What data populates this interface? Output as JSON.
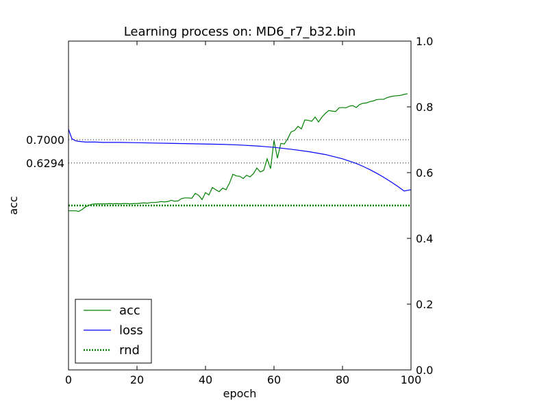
{
  "chart_data": {
    "type": "line",
    "title": "Learning process on: MD6_r7_b32.bin",
    "xlabel": "epoch",
    "ylabel": "acc",
    "xlim": [
      0,
      100
    ],
    "ylim": [
      0,
      1
    ],
    "x_ticks": [
      "0",
      "20",
      "40",
      "60",
      "80",
      "100"
    ],
    "y_ticks_right": [
      "0.0",
      "0.2",
      "0.4",
      "0.6",
      "0.8",
      "1.0"
    ],
    "reference_lines": [
      {
        "value": 0.7,
        "label": "0.7000",
        "style": "dotted",
        "color": "#000000"
      },
      {
        "value": 0.6294,
        "label": "0.6294",
        "style": "dotted",
        "color": "#000000"
      }
    ],
    "grid": false,
    "legend_position": "lower-left",
    "series": [
      {
        "name": "acc",
        "color": "#008000",
        "style": "solid",
        "x": [
          0,
          1,
          2,
          3,
          4,
          5,
          6,
          7,
          8,
          9,
          10,
          11,
          12,
          13,
          14,
          15,
          16,
          17,
          18,
          19,
          20,
          21,
          22,
          23,
          24,
          25,
          26,
          27,
          28,
          29,
          30,
          31,
          32,
          33,
          34,
          35,
          36,
          37,
          38,
          39,
          40,
          41,
          42,
          43,
          44,
          45,
          46,
          47,
          48,
          49,
          50,
          51,
          52,
          53,
          54,
          55,
          56,
          57,
          58,
          59,
          60,
          61,
          62,
          63,
          64,
          65,
          66,
          67,
          68,
          69,
          70,
          71,
          72,
          73,
          74,
          75,
          76,
          77,
          78,
          79,
          80,
          81,
          82,
          83,
          84,
          85,
          86,
          87,
          88,
          89,
          90,
          91,
          92,
          93,
          94,
          95,
          96,
          97,
          98,
          99
        ],
        "values": [
          0.484,
          0.484,
          0.484,
          0.482,
          0.488,
          0.496,
          0.501,
          0.504,
          0.505,
          0.505,
          0.505,
          0.505,
          0.506,
          0.505,
          0.506,
          0.505,
          0.506,
          0.506,
          0.505,
          0.506,
          0.506,
          0.507,
          0.508,
          0.507,
          0.509,
          0.509,
          0.51,
          0.512,
          0.511,
          0.512,
          0.516,
          0.513,
          0.514,
          0.521,
          0.523,
          0.523,
          0.522,
          0.537,
          0.531,
          0.518,
          0.539,
          0.532,
          0.555,
          0.548,
          0.542,
          0.553,
          0.548,
          0.568,
          0.595,
          0.59,
          0.589,
          0.582,
          0.592,
          0.587,
          0.597,
          0.614,
          0.602,
          0.607,
          0.642,
          0.612,
          0.698,
          0.644,
          0.689,
          0.687,
          0.703,
          0.724,
          0.728,
          0.741,
          0.733,
          0.76,
          0.759,
          0.756,
          0.769,
          0.754,
          0.769,
          0.78,
          0.789,
          0.787,
          0.786,
          0.797,
          0.798,
          0.797,
          0.802,
          0.804,
          0.798,
          0.807,
          0.811,
          0.812,
          0.816,
          0.818,
          0.822,
          0.823,
          0.823,
          0.828,
          0.831,
          0.833,
          0.834,
          0.835,
          0.838,
          0.84
        ],
        "axis": "left"
      },
      {
        "name": "loss",
        "color": "#0000ff",
        "style": "solid",
        "x": [
          0,
          1,
          2,
          3,
          4,
          5,
          6,
          8,
          10,
          15,
          20,
          25,
          30,
          35,
          40,
          45,
          50,
          55,
          60,
          65,
          70,
          75,
          80,
          82,
          84,
          86,
          88,
          90,
          92,
          94,
          96,
          98,
          100
        ],
        "values": [
          0.732,
          0.703,
          0.697,
          0.695,
          0.694,
          0.693,
          0.693,
          0.693,
          0.692,
          0.692,
          0.691,
          0.69,
          0.689,
          0.688,
          0.687,
          0.686,
          0.684,
          0.681,
          0.677,
          0.671,
          0.664,
          0.655,
          0.642,
          0.635,
          0.628,
          0.619,
          0.609,
          0.598,
          0.586,
          0.573,
          0.559,
          0.544,
          0.548
        ],
        "axis": "right"
      },
      {
        "name": "rnd",
        "color": "#008000",
        "style": "dotted",
        "x": [
          0,
          100
        ],
        "values": [
          0.5,
          0.5
        ],
        "axis": "left"
      }
    ]
  }
}
